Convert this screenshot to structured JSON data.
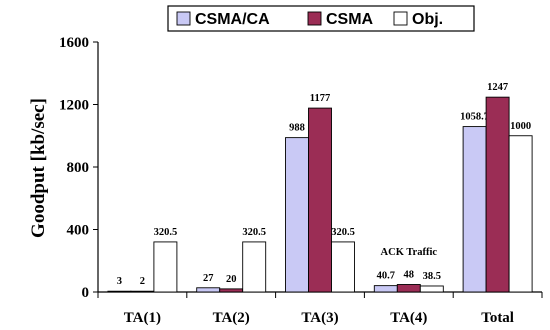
{
  "chart_data": {
    "type": "bar",
    "ylabel": "Goodput [kb/sec]",
    "categories": [
      "TA(1)",
      "TA(2)",
      "TA(3)",
      "TA(4)",
      "Total"
    ],
    "series": [
      {
        "name": "CSMA/CA",
        "color": "#c9c9f5",
        "values": [
          3,
          27,
          988,
          40.7,
          1058.7
        ],
        "labels": [
          "3",
          "27",
          "988",
          "40.7",
          "1058.7"
        ]
      },
      {
        "name": "CSMA",
        "color": "#9b2d55",
        "values": [
          2,
          20,
          1177,
          48,
          1247
        ],
        "labels": [
          "2",
          "20",
          "1177",
          "48",
          "1247"
        ]
      },
      {
        "name": "Obj.",
        "color": "#ffffff",
        "values": [
          320.5,
          320.5,
          320.5,
          38.5,
          1000
        ],
        "labels": [
          "320.5",
          "320.5",
          "320.5",
          "38.5",
          "1000"
        ]
      }
    ],
    "yticks": [
      0,
      400,
      800,
      1200,
      1600
    ],
    "ylim": [
      0,
      1600
    ],
    "grid": false,
    "legend": "top",
    "annotations": [
      {
        "text": "ACK Traffic",
        "category": "TA(4)"
      }
    ]
  }
}
